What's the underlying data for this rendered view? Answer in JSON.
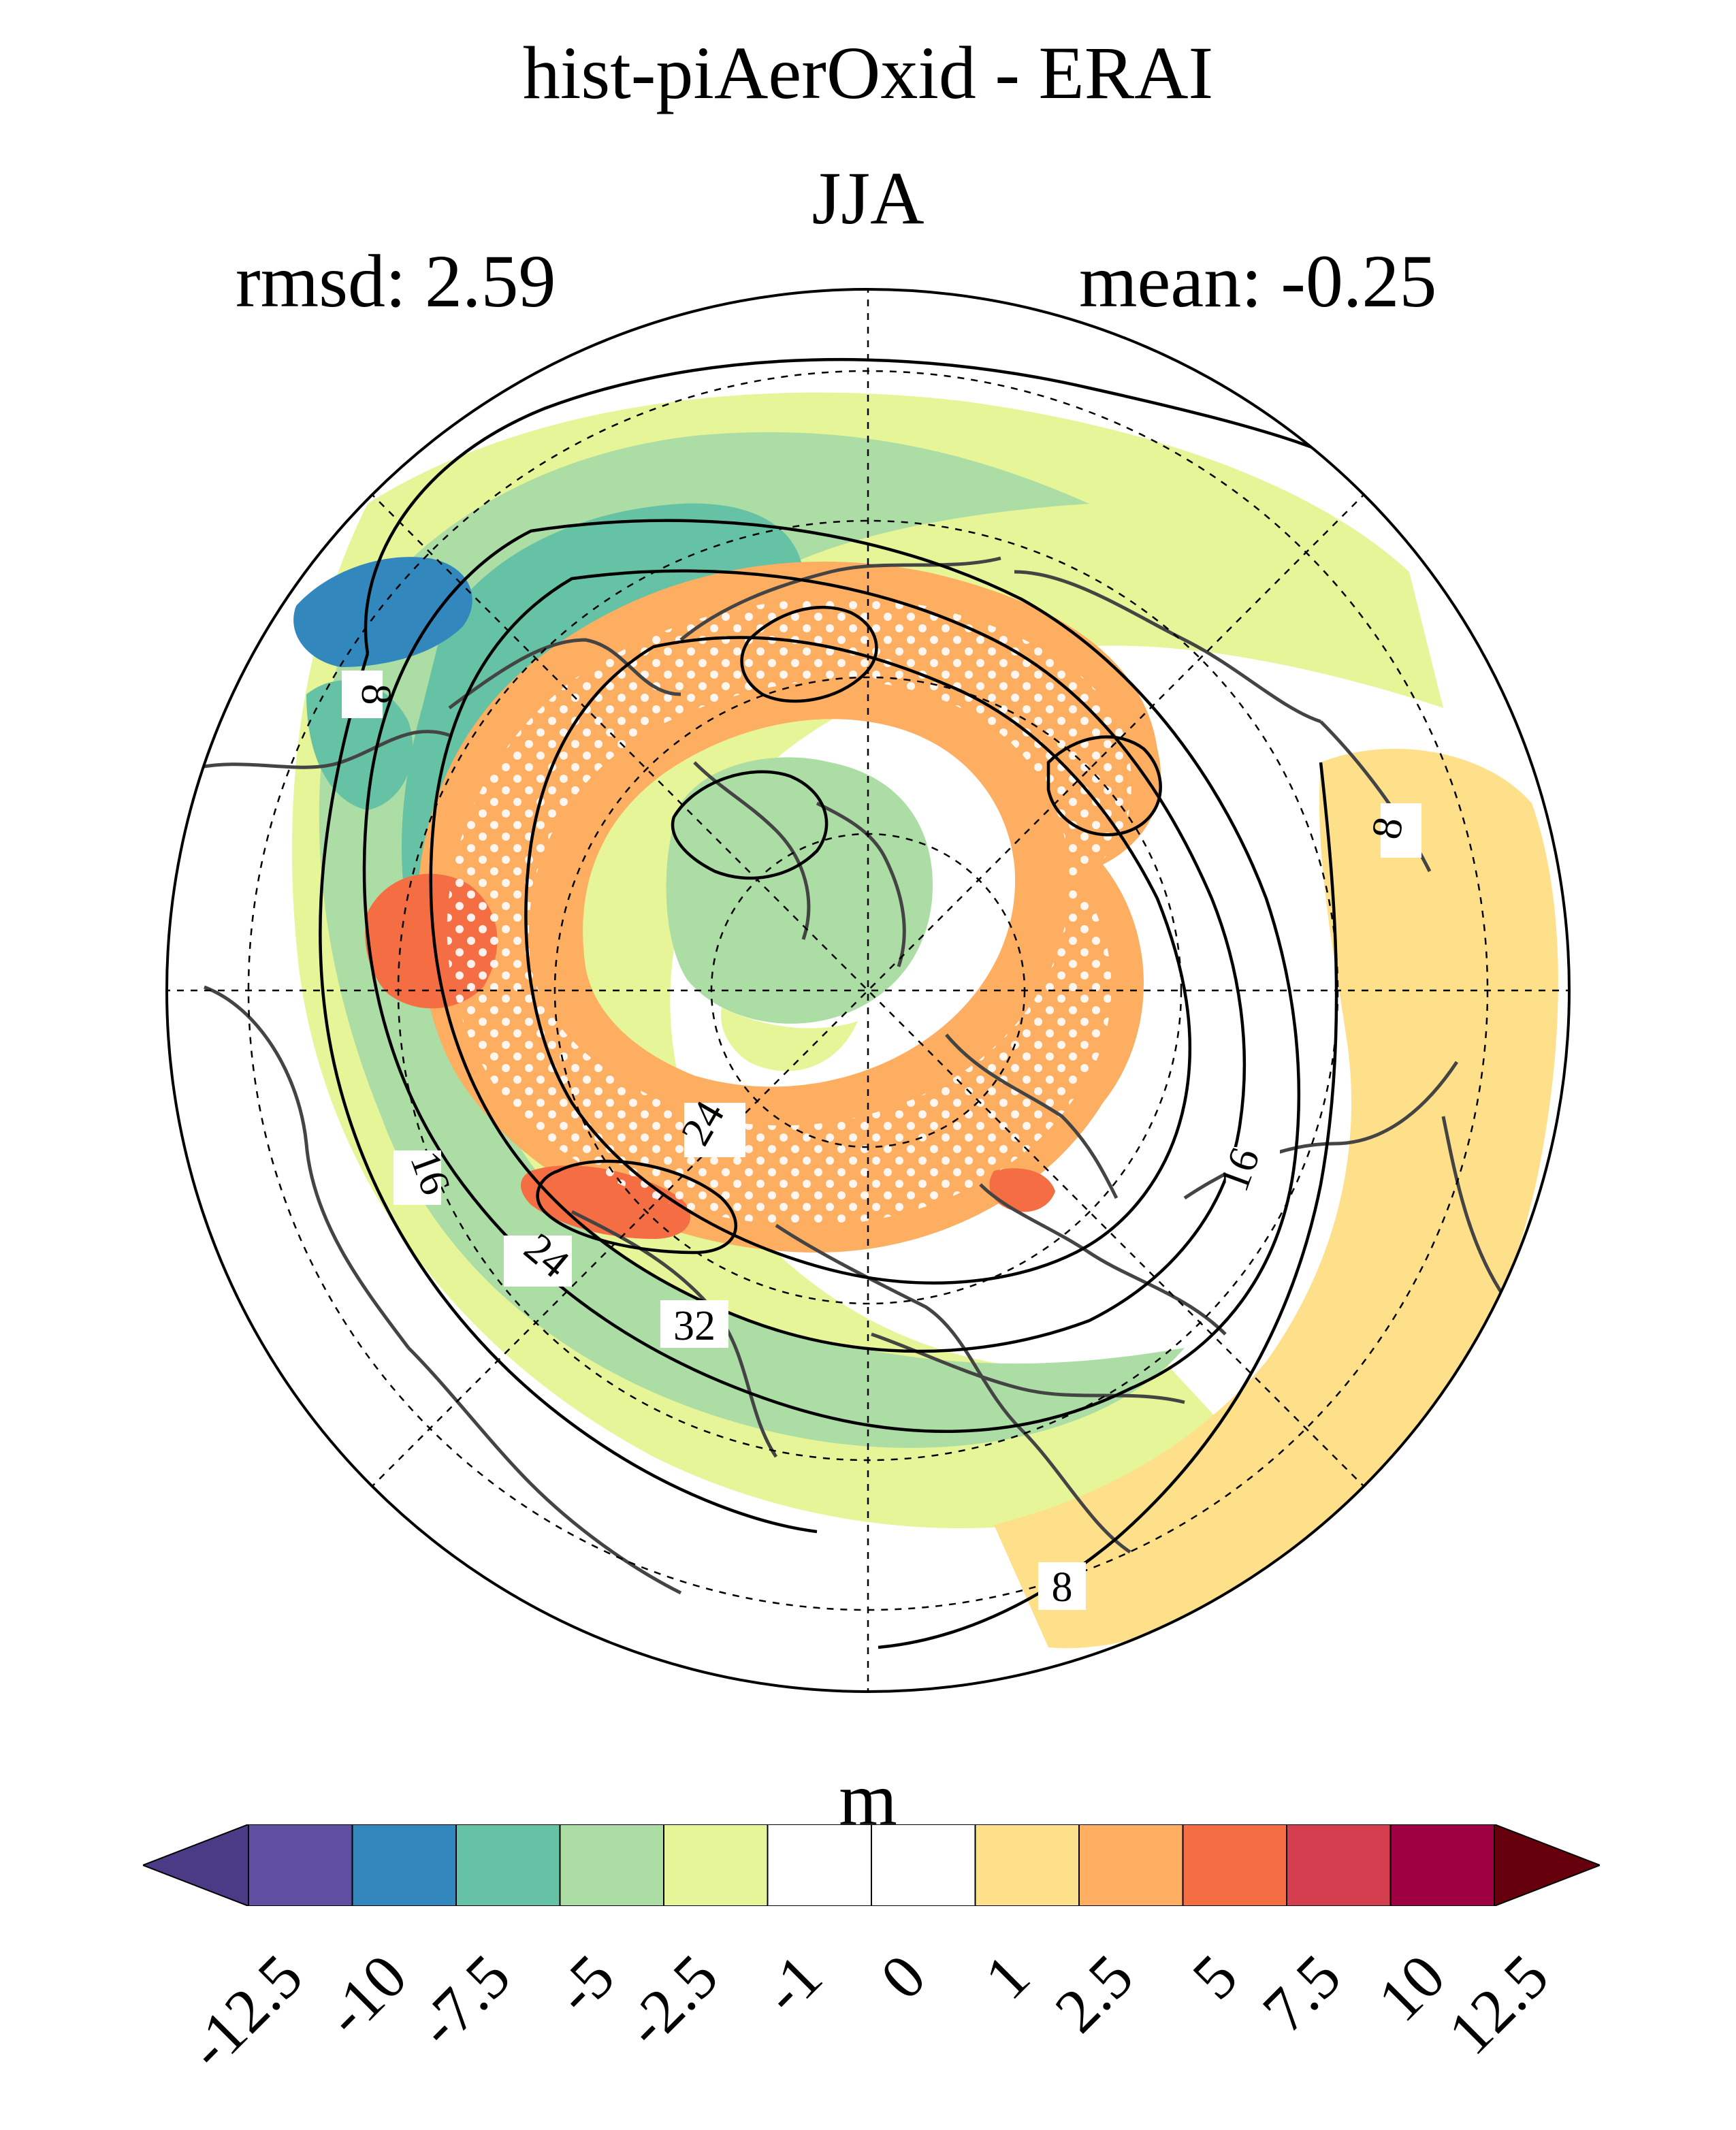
{
  "header": {
    "title": "hist-piAerOxid - ERAI",
    "season": "JJA",
    "rmsd": "rmsd: 2.59",
    "mean": "mean: -0.25"
  },
  "map": {
    "projection": "north-polar-stereographic",
    "graticule": "dashed",
    "contour_labels": [
      "8",
      "16",
      "24",
      "32",
      "24",
      "16",
      "8",
      "8",
      "16",
      "24"
    ]
  },
  "colorbar": {
    "units": "m",
    "ticks": [
      "-12.5",
      "-10",
      "-7.5",
      "-5",
      "-2.5",
      "-1",
      "0",
      "1",
      "2.5",
      "5",
      "7.5",
      "10",
      "12.5"
    ],
    "colors": [
      "#5e4fa2",
      "#3288bd",
      "#66c2a5",
      "#abdda4",
      "#e6f598",
      "#ffffff",
      "#ffffff",
      "#fee08b",
      "#fdae61",
      "#f46d43",
      "#d53e4f",
      "#9e0142"
    ],
    "low_extend_color": "#4b3a86",
    "high_extend_color": "#67000d"
  }
}
